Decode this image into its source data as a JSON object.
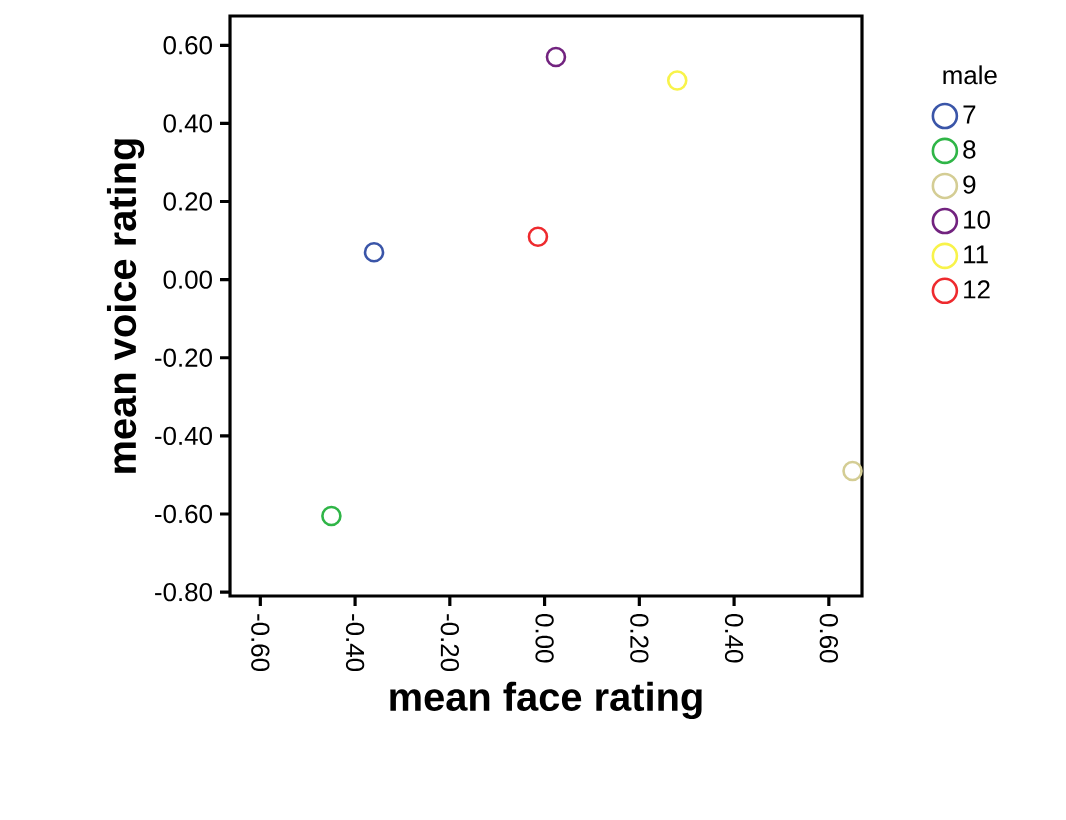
{
  "chart_data": {
    "type": "scatter",
    "xlabel": "mean face rating",
    "ylabel": "mean voice rating",
    "legend_title": "male",
    "xlim": [
      -0.664,
      0.67
    ],
    "ylim": [
      -0.81,
      0.675
    ],
    "xticks": [
      {
        "value": -0.6,
        "label": "-0.60"
      },
      {
        "value": -0.4,
        "label": "-0.40"
      },
      {
        "value": -0.2,
        "label": "-0.20"
      },
      {
        "value": 0,
        "label": "0.00"
      },
      {
        "value": 0.2,
        "label": "0.20"
      },
      {
        "value": 0.4,
        "label": "0.40"
      },
      {
        "value": 0.6,
        "label": "0.60"
      }
    ],
    "yticks": [
      {
        "value": 0.6,
        "label": "0.60"
      },
      {
        "value": 0.4,
        "label": "0.40"
      },
      {
        "value": 0.2,
        "label": "0.20"
      },
      {
        "value": 0,
        "label": "0.00"
      },
      {
        "value": -0.2,
        "label": "-0.20"
      },
      {
        "value": -0.4,
        "label": "-0.40"
      },
      {
        "value": -0.6,
        "label": "-0.60"
      },
      {
        "value": -0.8,
        "label": "-0.80"
      }
    ],
    "marker": "circle",
    "legend": "right",
    "grid": false,
    "series": [
      {
        "name": "7",
        "color": "#3a55a8",
        "x": [
          -0.36
        ],
        "values": [
          0.07
        ]
      },
      {
        "name": "8",
        "color": "#2fb547",
        "x": [
          -0.45
        ],
        "values": [
          -0.605
        ]
      },
      {
        "name": "9",
        "color": "#d4cd94",
        "x": [
          0.65
        ],
        "values": [
          -0.49
        ]
      },
      {
        "name": "10",
        "color": "#72237f",
        "x": [
          0.024
        ],
        "values": [
          0.57
        ]
      },
      {
        "name": "11",
        "color": "#f8f34a",
        "x": [
          0.28
        ],
        "values": [
          0.51
        ]
      },
      {
        "name": "12",
        "color": "#ee2a2e",
        "x": [
          -0.014
        ],
        "values": [
          0.11
        ]
      }
    ]
  }
}
